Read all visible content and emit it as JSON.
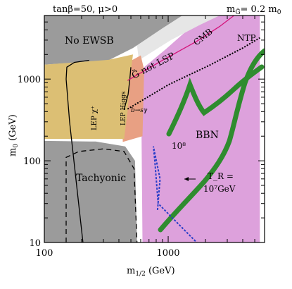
{
  "header": {
    "left": "tanβ=50, μ>0",
    "right_main": "m",
    "right_sub": "G̃",
    "right_rest": "= 0.2 m",
    "right_sub2": "0"
  },
  "axes": {
    "xlabel_main": "m",
    "xlabel_sub": "1/2",
    "xlabel_unit": " (GeV)",
    "ylabel_main": "m",
    "ylabel_sub": "0",
    "ylabel_unit": " (GeV)"
  },
  "colors": {
    "no_ewsb": "#9b9b9b",
    "tachyonic": "#9b9b9b",
    "g_not_lsp": "#e6e6e6",
    "lep": "#dcbf74",
    "bsgamma": "#e8a083",
    "bbn": "#dda1dc",
    "coannihilation_band": "#2f8c2f",
    "cmb_line": "#d4147a",
    "ntp_line": "#000000",
    "tr_contour": "#2a3ec8"
  },
  "chart_data": {
    "type": "area",
    "xscale": "log",
    "yscale": "log",
    "xlim": [
      100,
      6000
    ],
    "ylim": [
      10,
      6000
    ],
    "xticks": [
      {
        "v": 100,
        "label": "100"
      },
      {
        "v": 1000,
        "label": "1000"
      }
    ],
    "yticks": [
      {
        "v": 10,
        "label": "10"
      },
      {
        "v": 100,
        "label": "100"
      },
      {
        "v": 1000,
        "label": "1000"
      }
    ],
    "regions": [
      {
        "key": "bbn",
        "label": "BBN",
        "color": "#dda1dc",
        "points": [
          [
            620,
            10
          ],
          [
            5500,
            10
          ],
          [
            5500,
            6000
          ],
          [
            2000,
            6000
          ],
          [
            1300,
            3500
          ],
          [
            950,
            2300
          ],
          [
            640,
            1400
          ],
          [
            600,
            700
          ],
          [
            610,
            200
          ]
        ]
      },
      {
        "key": "g_not_lsp",
        "label": "G̃ not LSP",
        "color": "#e6e6e6",
        "points": [
          [
            580,
            1700
          ],
          [
            1050,
            3000
          ],
          [
            1800,
            4600
          ],
          [
            2600,
            6000
          ],
          [
            1300,
            6000
          ],
          [
            800,
            4300
          ],
          [
            560,
            2600
          ]
        ]
      },
      {
        "key": "no_ewsb",
        "label": "No EWSB",
        "color": "#9b9b9b",
        "points": [
          [
            100,
            6000
          ],
          [
            1300,
            6000
          ],
          [
            900,
            4200
          ],
          [
            520,
            2400
          ],
          [
            330,
            1700
          ],
          [
            100,
            1500
          ]
        ]
      },
      {
        "key": "bsgamma",
        "label": "b→sγ",
        "color": "#e8a083",
        "points": [
          [
            420,
            1450
          ],
          [
            600,
            1950
          ],
          [
            640,
            1300
          ],
          [
            620,
            200
          ],
          [
            430,
            170
          ]
        ]
      },
      {
        "key": "lep",
        "label": "LEP",
        "color": "#dcbf74",
        "points": [
          [
            100,
            1500
          ],
          [
            330,
            1720
          ],
          [
            520,
            2000
          ],
          [
            500,
            1250
          ],
          [
            470,
            400
          ],
          [
            440,
            185
          ],
          [
            100,
            185
          ]
        ]
      },
      {
        "key": "tachyonic",
        "label": "Tachyonic",
        "color": "#9b9b9b",
        "points": [
          [
            100,
            10
          ],
          [
            100,
            175
          ],
          [
            260,
            172
          ],
          [
            450,
            150
          ],
          [
            540,
            100
          ],
          [
            560,
            10
          ]
        ]
      }
    ],
    "lines": [
      {
        "key": "lep_chargino",
        "label": "LEP χ±",
        "color": "#000000",
        "dash": "",
        "points": [
          [
            205,
            10
          ],
          [
            160,
            300
          ],
          [
            150,
            1000
          ],
          [
            152,
            1400
          ],
          [
            175,
            1600
          ],
          [
            230,
            1700
          ]
        ]
      },
      {
        "key": "lep_higgs",
        "label": "LEP Higgs",
        "color": "#000000",
        "dash": "",
        "points": [
          [
            440,
            420
          ],
          [
            475,
            650
          ],
          [
            490,
            1000
          ],
          [
            500,
            1400
          ]
        ]
      },
      {
        "key": "tachyonic_boundary",
        "label": "",
        "color": "#000000",
        "dash": "7,5",
        "points": [
          [
            150,
            10
          ],
          [
            150,
            110
          ],
          [
            190,
            130
          ],
          [
            300,
            140
          ],
          [
            440,
            130
          ],
          [
            530,
            80
          ],
          [
            560,
            10
          ]
        ]
      },
      {
        "key": "cmb",
        "label": "CMB",
        "color": "#d4147a",
        "dash": "",
        "points": [
          [
            470,
            960
          ],
          [
            900,
            1700
          ],
          [
            1700,
            2900
          ],
          [
            2600,
            4400
          ],
          [
            3400,
            6000
          ]
        ]
      },
      {
        "key": "ntp",
        "label": "NTP",
        "color": "#000000",
        "dash": "2,2",
        "points": [
          [
            470,
            430
          ],
          [
            1000,
            850
          ],
          [
            2200,
            1500
          ],
          [
            4000,
            2400
          ],
          [
            5500,
            3200
          ]
        ]
      },
      {
        "key": "tr_contour",
        "label": "T_R = 10^7 GeV",
        "color": "#2a3ec8",
        "dash": "3,2",
        "points": [
          [
            820,
            25
          ],
          [
            860,
            60
          ],
          [
            760,
            150
          ],
          [
            780,
            100
          ],
          [
            830,
            30
          ],
          [
            1700,
            10
          ]
        ]
      }
    ],
    "annotations": [
      {
        "text": "No EWSB"
      },
      {
        "text": "Tachyonic"
      },
      {
        "text": "BBN"
      },
      {
        "text": "CMB"
      },
      {
        "text": "NTP"
      },
      {
        "text": "b→sγ"
      },
      {
        "text": "10⁸"
      },
      {
        "text": "LEP χ⁺"
      },
      {
        "text": "LEP Higgs"
      },
      {
        "text": "G̃ not LSP"
      },
      {
        "text": "T_R ="
      },
      {
        "text": "10⁷GeV"
      }
    ]
  }
}
